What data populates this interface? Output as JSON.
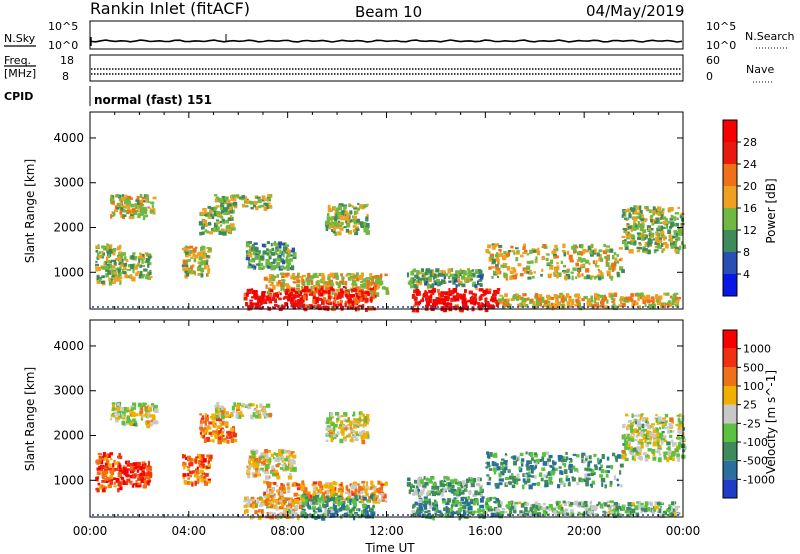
{
  "header": {
    "station": "Rankin Inlet (fitACF)",
    "beam": "Beam 10",
    "date": "04/May/2019"
  },
  "noise_panel": {
    "left_label": "N.Sky",
    "right_label": "N.Search",
    "left_ticks": [
      "10^5",
      "10^0"
    ],
    "right_ticks": [
      "10^5",
      "10^0"
    ],
    "sky_line_color": "#000000",
    "search_line_style": "dotted"
  },
  "freq_panel": {
    "left_label_line1": "Freq.",
    "left_label_line2": "[MHz]",
    "right_label": "Nave",
    "left_ticks": [
      "18",
      "8"
    ],
    "right_ticks": [
      "60",
      "0"
    ]
  },
  "cpid_panel": {
    "label": "CPID",
    "mode": "normal (fast) 151"
  },
  "x_axis": {
    "label": "Time UT",
    "ticks": [
      "00:00",
      "04:00",
      "08:00",
      "12:00",
      "16:00",
      "20:00",
      "00:00"
    ]
  },
  "chart_data": [
    {
      "type": "heatmap",
      "name": "power",
      "ylabel": "Slant Range [km]",
      "yticks": [
        1000,
        2000,
        3000,
        4000
      ],
      "ylim": [
        180,
        4580
      ],
      "xlim_hours": [
        0,
        24
      ],
      "colorbar": {
        "label": "Power [dB]",
        "tick_labels": [
          "4",
          "8",
          "12",
          "16",
          "20",
          "24",
          "28"
        ],
        "colors": [
          "#0a16e6",
          "#2a4fb4",
          "#3f8a5a",
          "#6fb841",
          "#f0a020",
          "#f07018",
          "#e81a10",
          "#f80000"
        ]
      },
      "echo_regions": [
        {
          "t0": 0.2,
          "t1": 1.2,
          "r0": 800,
          "r1": 1650,
          "level": 0.45
        },
        {
          "t0": 1.1,
          "t1": 2.4,
          "r0": 900,
          "r1": 1450,
          "level": 0.45
        },
        {
          "t0": 0.8,
          "t1": 2.6,
          "r0": 2250,
          "r1": 2750,
          "level": 0.5
        },
        {
          "t0": 3.7,
          "t1": 4.8,
          "r0": 950,
          "r1": 1600,
          "level": 0.5
        },
        {
          "t0": 4.4,
          "t1": 5.8,
          "r0": 1900,
          "r1": 2500,
          "level": 0.45
        },
        {
          "t0": 5.0,
          "t1": 7.3,
          "r0": 2450,
          "r1": 2750,
          "level": 0.45
        },
        {
          "t0": 6.3,
          "t1": 8.2,
          "r0": 1100,
          "r1": 1700,
          "level": 0.35
        },
        {
          "t0": 9.5,
          "t1": 11.2,
          "r0": 1900,
          "r1": 2550,
          "level": 0.45
        },
        {
          "t0": 7.0,
          "t1": 12.0,
          "r0": 550,
          "r1": 1000,
          "level": 0.55
        },
        {
          "t0": 6.2,
          "t1": 8.6,
          "r0": 200,
          "r1": 650,
          "level": 0.92
        },
        {
          "t0": 8.5,
          "t1": 11.5,
          "r0": 200,
          "r1": 700,
          "level": 0.8
        },
        {
          "t0": 12.8,
          "t1": 15.8,
          "r0": 700,
          "r1": 1100,
          "level": 0.4
        },
        {
          "t0": 13.0,
          "t1": 16.5,
          "r0": 200,
          "r1": 650,
          "level": 0.9
        },
        {
          "t0": 16.0,
          "t1": 21.5,
          "r0": 900,
          "r1": 1650,
          "level": 0.5
        },
        {
          "t0": 16.5,
          "t1": 23.8,
          "r0": 250,
          "r1": 550,
          "level": 0.55
        },
        {
          "t0": 21.5,
          "t1": 24.0,
          "r0": 1500,
          "r1": 2500,
          "level": 0.45
        }
      ]
    },
    {
      "type": "heatmap",
      "name": "velocity",
      "ylabel": "Slant Range [km]",
      "yticks": [
        1000,
        2000,
        3000,
        4000
      ],
      "ylim": [
        180,
        4580
      ],
      "xlim_hours": [
        0,
        24
      ],
      "colorbar": {
        "label": "Velocity [m s^-1]",
        "tick_labels": [
          "1000",
          "500",
          "100",
          "25",
          "-25",
          "-100",
          "-500",
          "-1000"
        ],
        "colors": [
          "#1e3cc8",
          "#2a6e9e",
          "#3f8a5a",
          "#5cc040",
          "#c8c8c8",
          "#f0b000",
          "#f07018",
          "#f03010",
          "#f80000"
        ]
      },
      "echo_regions": [
        {
          "t0": 0.2,
          "t1": 1.2,
          "r0": 800,
          "r1": 1650,
          "level": 0.8
        },
        {
          "t0": 1.1,
          "t1": 2.4,
          "r0": 900,
          "r1": 1450,
          "level": 0.85
        },
        {
          "t0": 0.8,
          "t1": 2.6,
          "r0": 2250,
          "r1": 2750,
          "level": 0.5
        },
        {
          "t0": 3.7,
          "t1": 4.8,
          "r0": 950,
          "r1": 1600,
          "level": 0.75
        },
        {
          "t0": 4.4,
          "t1": 5.8,
          "r0": 1900,
          "r1": 2500,
          "level": 0.7
        },
        {
          "t0": 5.0,
          "t1": 7.3,
          "r0": 2450,
          "r1": 2750,
          "level": 0.5
        },
        {
          "t0": 6.3,
          "t1": 8.2,
          "r0": 1100,
          "r1": 1700,
          "level": 0.55
        },
        {
          "t0": 9.5,
          "t1": 11.2,
          "r0": 1900,
          "r1": 2550,
          "level": 0.5
        },
        {
          "t0": 7.0,
          "t1": 12.0,
          "r0": 550,
          "r1": 1000,
          "level": 0.65
        },
        {
          "t0": 6.2,
          "t1": 8.6,
          "r0": 200,
          "r1": 650,
          "level": 0.6
        },
        {
          "t0": 8.5,
          "t1": 11.5,
          "r0": 200,
          "r1": 700,
          "level": 0.3
        },
        {
          "t0": 12.8,
          "t1": 15.8,
          "r0": 700,
          "r1": 1100,
          "level": 0.35
        },
        {
          "t0": 13.0,
          "t1": 16.5,
          "r0": 200,
          "r1": 650,
          "level": 0.3
        },
        {
          "t0": 16.0,
          "t1": 21.5,
          "r0": 900,
          "r1": 1650,
          "level": 0.3
        },
        {
          "t0": 16.5,
          "t1": 23.8,
          "r0": 250,
          "r1": 550,
          "level": 0.4
        },
        {
          "t0": 21.5,
          "t1": 24.0,
          "r0": 1500,
          "r1": 2500,
          "level": 0.5
        }
      ]
    }
  ]
}
